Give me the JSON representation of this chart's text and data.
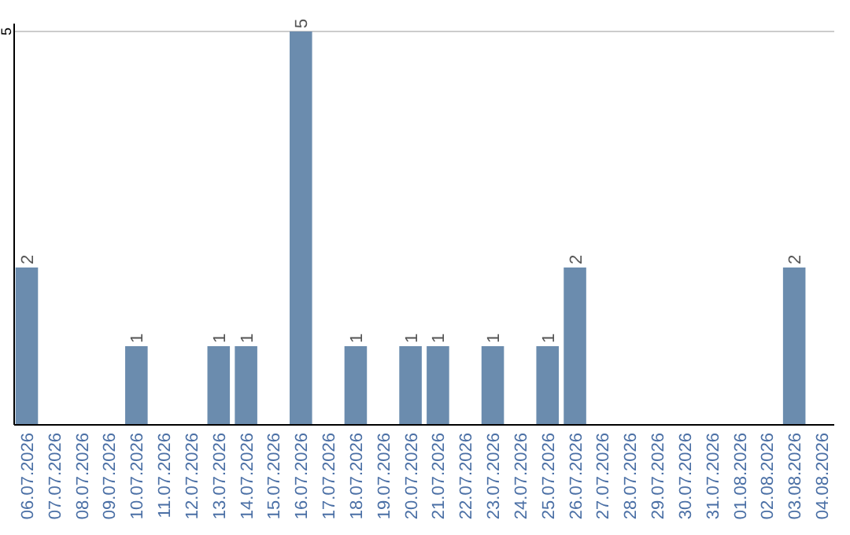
{
  "chart_data": {
    "type": "bar",
    "categories": [
      "06.07.2026",
      "07.07.2026",
      "08.07.2026",
      "09.07.2026",
      "10.07.2026",
      "11.07.2026",
      "12.07.2026",
      "13.07.2026",
      "14.07.2026",
      "15.07.2026",
      "16.07.2026",
      "17.07.2026",
      "18.07.2026",
      "19.07.2026",
      "20.07.2026",
      "21.07.2026",
      "22.07.2026",
      "23.07.2026",
      "24.07.2026",
      "25.07.2026",
      "26.07.2026",
      "27.07.2026",
      "28.07.2026",
      "29.07.2026",
      "30.07.2026",
      "31.07.2026",
      "01.08.2026",
      "02.08.2026",
      "03.08.2026",
      "04.08.2026"
    ],
    "values": [
      2,
      0,
      0,
      0,
      1,
      0,
      0,
      1,
      1,
      0,
      5,
      0,
      1,
      0,
      1,
      1,
      0,
      1,
      0,
      1,
      2,
      0,
      0,
      0,
      0,
      0,
      0,
      0,
      2,
      0
    ],
    "color": "#6b8cae",
    "value_labels": [
      "2",
      null,
      null,
      null,
      "1",
      null,
      null,
      "1",
      "1",
      null,
      "5",
      null,
      "1",
      null,
      "1",
      "1",
      null,
      "1",
      null,
      "1",
      "2",
      null,
      null,
      null,
      null,
      null,
      null,
      null,
      "2",
      null
    ],
    "ylim": [
      0,
      5
    ],
    "yticks": [
      5
    ],
    "ref_lines": [
      {
        "axis": "y",
        "value": 5,
        "color": "#cccccc"
      }
    ]
  }
}
